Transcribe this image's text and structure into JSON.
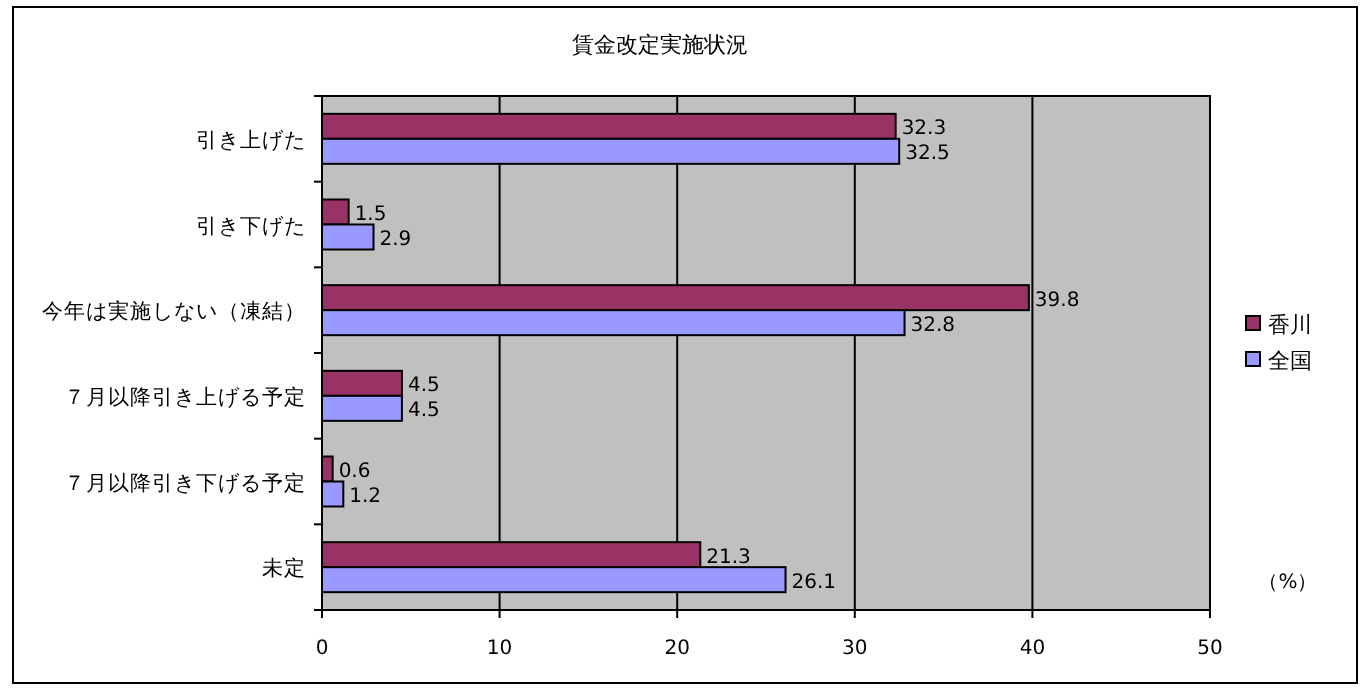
{
  "chart_data": {
    "type": "bar",
    "orientation": "horizontal",
    "title": "賃金改定実施状況",
    "categories": [
      "引き上げた",
      "引き下げた",
      "今年は実施しない（凍結）",
      "７月以降引き上げる予定",
      "７月以降引き下げる予定",
      "未定"
    ],
    "series": [
      {
        "name": "香川",
        "color": "#993366",
        "values": [
          32.3,
          1.5,
          39.8,
          4.5,
          0.6,
          21.3
        ]
      },
      {
        "name": "全国",
        "color": "#9999ff",
        "values": [
          32.5,
          2.9,
          32.8,
          4.5,
          1.2,
          26.1
        ]
      }
    ],
    "xlim": [
      0,
      50
    ],
    "xticks": [
      0,
      10,
      20,
      30,
      40,
      50
    ],
    "grid": "x",
    "legend": "right",
    "data_labels": true,
    "annotations": [
      "（%）"
    ]
  }
}
